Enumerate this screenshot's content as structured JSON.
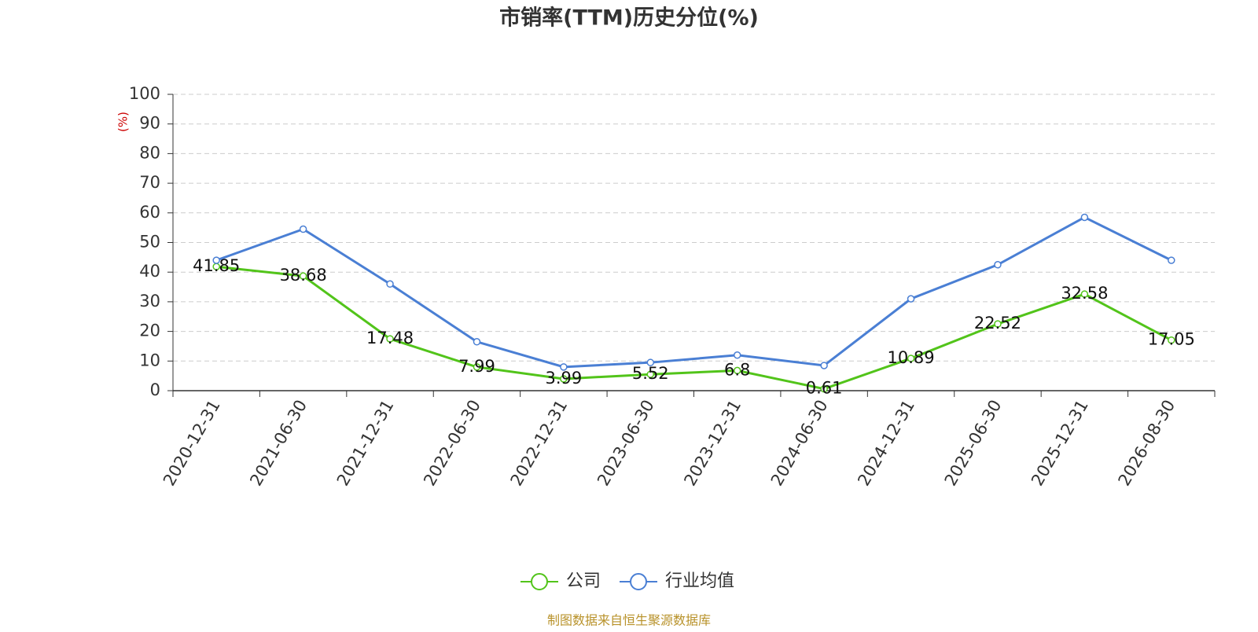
{
  "chart_data": {
    "type": "line",
    "title": "市销率(TTM)历史分位(%)",
    "y_label": "(%)",
    "source": "制图数据来自恒生聚源数据库",
    "categories": [
      "2020-12-31",
      "2021-06-30",
      "2021-12-31",
      "2022-06-30",
      "2022-12-31",
      "2023-06-30",
      "2023-12-31",
      "2024-06-30",
      "2024-12-31",
      "2025-06-30",
      "2025-12-31",
      "2026-08-30"
    ],
    "series": [
      {
        "name": "公司",
        "color": "#52c41a",
        "labels": true,
        "values": [
          41.85,
          38.68,
          17.48,
          7.99,
          3.99,
          5.52,
          6.8,
          0.61,
          10.89,
          22.52,
          32.58,
          17.05
        ]
      },
      {
        "name": "行业均值",
        "color": "#4a7fd4",
        "labels": false,
        "values": [
          44,
          54.5,
          36,
          16.5,
          8,
          9.5,
          12,
          8.5,
          31,
          42.5,
          58.5,
          44
        ]
      }
    ],
    "ylim": [
      0,
      100
    ],
    "yticks": [
      0,
      10,
      20,
      30,
      40,
      50,
      60,
      70,
      80,
      90,
      100
    ],
    "grid": true,
    "legend": "bottom"
  }
}
